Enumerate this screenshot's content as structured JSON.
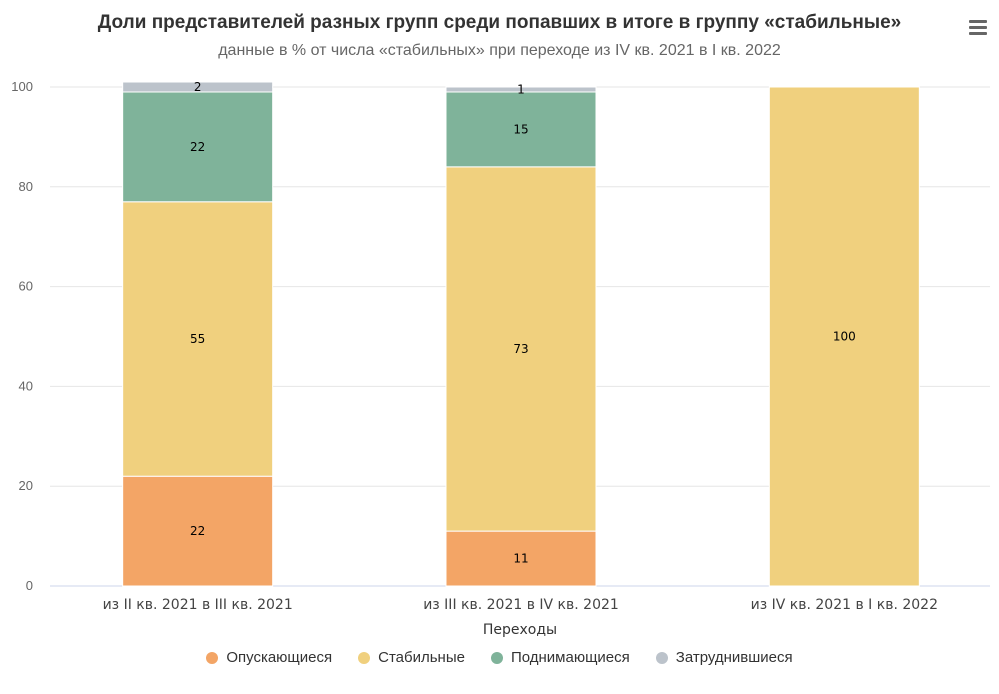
{
  "header": {
    "title": "Доли представителей разных групп среди попавших в итоге в группу «стабильные»",
    "subtitle": "данные в % от числа «стабильных» при переходе из IV кв. 2021 в I кв. 2022",
    "menu_icon": "hamburger-menu-icon"
  },
  "chart_data": {
    "type": "bar",
    "stacked": true,
    "title": "Доли представителей разных групп среди попавших в итоге в группу «стабильные»",
    "subtitle": "данные в % от числа «стабильных» при переходе из IV кв. 2021 в I кв. 2022",
    "xlabel": "Переходы",
    "ylabel": "",
    "ylim": [
      0,
      100
    ],
    "yticks": [
      0,
      20,
      40,
      60,
      80,
      100
    ],
    "grid": true,
    "legend_position": "bottom-center",
    "categories": [
      "из II кв. 2021 в III кв. 2021",
      "из III кв. 2021 в IV кв. 2021",
      "из IV кв. 2021 в I кв. 2022"
    ],
    "series": [
      {
        "name": "Опускающиеся",
        "color": "#f3a566",
        "values": [
          22,
          11,
          0
        ]
      },
      {
        "name": "Стабильные",
        "color": "#f0d07e",
        "values": [
          55,
          73,
          100
        ]
      },
      {
        "name": "Поднимающиеся",
        "color": "#7fb39a",
        "values": [
          22,
          15,
          0
        ]
      },
      {
        "name": "Затруднившиеся",
        "color": "#bcc3cb",
        "values": [
          2,
          1,
          0
        ]
      }
    ]
  }
}
